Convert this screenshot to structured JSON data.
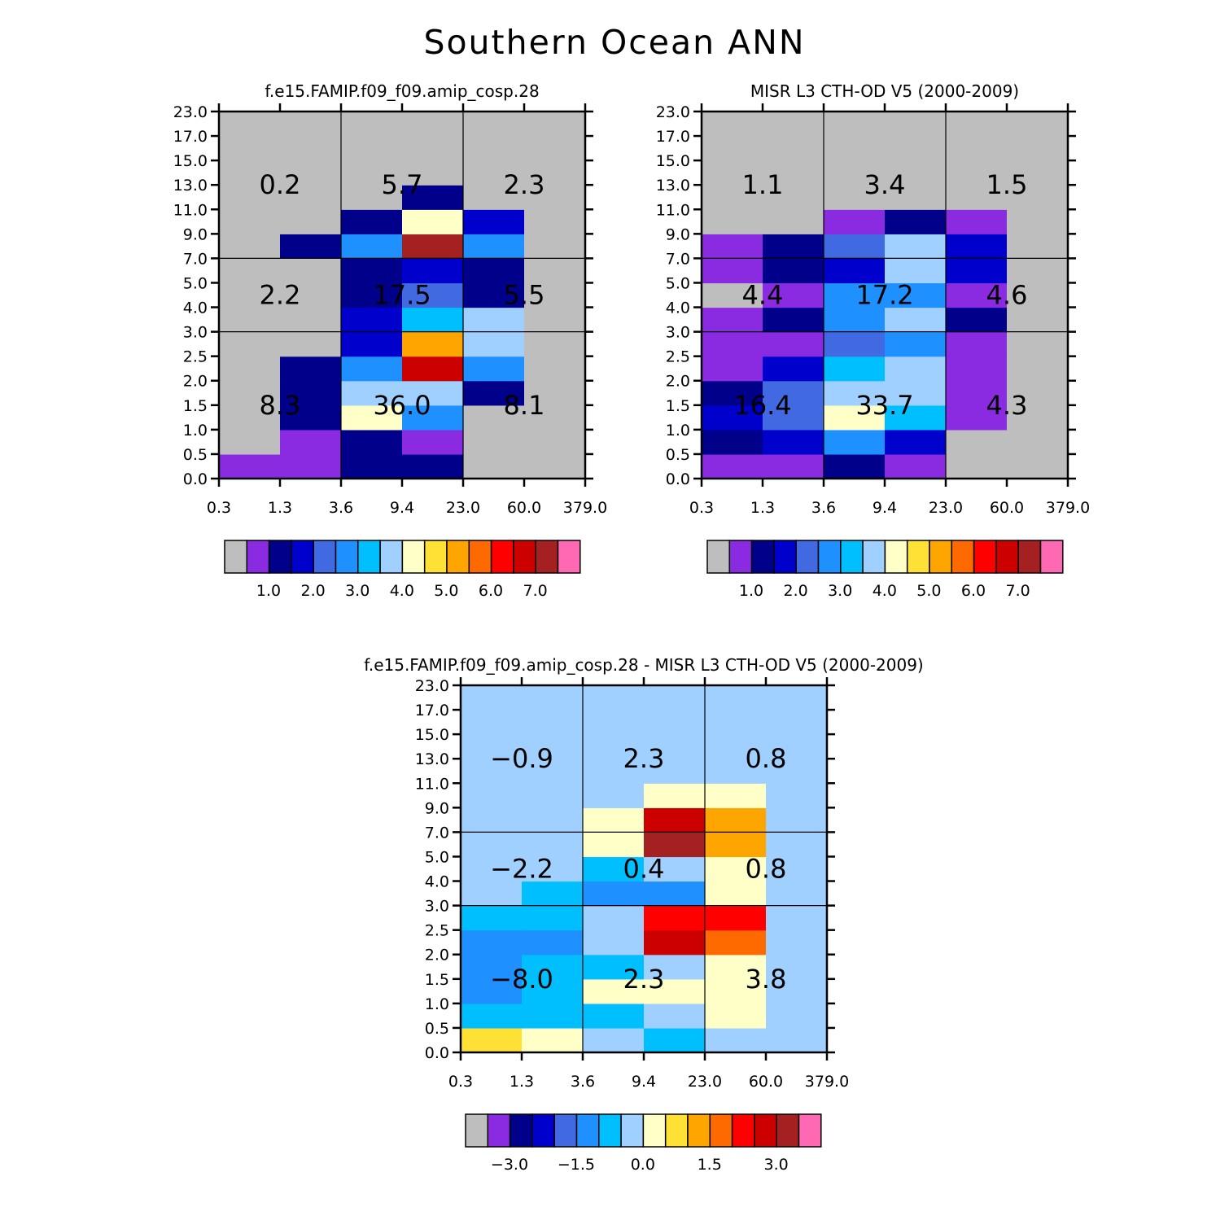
{
  "title": "Southern Ocean ANN",
  "chart_data": [
    {
      "type": "heatmap",
      "title": "f.e15.FAMIP.f09_f09.amip_cosp.28",
      "x_tick_labels": [
        "0.3",
        "1.3",
        "3.6",
        "9.4",
        "23.0",
        "60.0",
        "379.0"
      ],
      "y_tick_labels": [
        "0.0",
        "0.5",
        "1.0",
        "1.5",
        "2.0",
        "2.5",
        "3.0",
        "4.0",
        "5.0",
        "7.0",
        "9.0",
        "11.0",
        "13.0",
        "15.0",
        "17.0",
        "23.0"
      ],
      "cells": [
        [
          1,
          1,
          2,
          2,
          0,
          0
        ],
        [
          0,
          1,
          2,
          1,
          0,
          0
        ],
        [
          0,
          2,
          8,
          5,
          0,
          0
        ],
        [
          0,
          2,
          7,
          7,
          2,
          0
        ],
        [
          0,
          2,
          5,
          13,
          5,
          0
        ],
        [
          0,
          0,
          3,
          10,
          7,
          0
        ],
        [
          0,
          0,
          3,
          6,
          7,
          0
        ],
        [
          0,
          0,
          2,
          4,
          2,
          0
        ],
        [
          0,
          0,
          2,
          3,
          2,
          0
        ],
        [
          0,
          2,
          5,
          14,
          5,
          0
        ],
        [
          0,
          0,
          2,
          8,
          3,
          0
        ],
        [
          0,
          0,
          0,
          2,
          0,
          0
        ],
        [
          0,
          0,
          0,
          0,
          0,
          0
        ],
        [
          0,
          0,
          0,
          0,
          0,
          0
        ],
        [
          0,
          0,
          0,
          0,
          0,
          0
        ]
      ],
      "box_totals": [
        {
          "label": "8.3",
          "group": "low",
          "col_group": 0
        },
        {
          "label": "36.0",
          "group": "low",
          "col_group": 1
        },
        {
          "label": "8.1",
          "group": "low",
          "col_group": 2
        },
        {
          "label": "2.2",
          "group": "mid",
          "col_group": 0
        },
        {
          "label": "17.5",
          "group": "mid",
          "col_group": 1
        },
        {
          "label": "5.5",
          "group": "mid",
          "col_group": 2
        },
        {
          "label": "0.2",
          "group": "high",
          "col_group": 0
        },
        {
          "label": "5.7",
          "group": "high",
          "col_group": 1
        },
        {
          "label": "2.3",
          "group": "high",
          "col_group": 2
        }
      ],
      "colorbar_labels": [
        "1.0",
        "2.0",
        "3.0",
        "4.0",
        "5.0",
        "6.0",
        "7.0"
      ]
    },
    {
      "type": "heatmap",
      "title": "MISR L3 CTH-OD V5 (2000-2009)",
      "x_tick_labels": [
        "0.3",
        "1.3",
        "3.6",
        "9.4",
        "23.0",
        "60.0",
        "379.0"
      ],
      "y_tick_labels": [
        "0.0",
        "0.5",
        "1.0",
        "1.5",
        "2.0",
        "2.5",
        "3.0",
        "4.0",
        "5.0",
        "7.0",
        "9.0",
        "11.0",
        "13.0",
        "15.0",
        "17.0",
        "23.0"
      ],
      "cells": [
        [
          1,
          1,
          2,
          1,
          0,
          0
        ],
        [
          2,
          3,
          5,
          3,
          0,
          0
        ],
        [
          3,
          4,
          8,
          6,
          1,
          0
        ],
        [
          2,
          4,
          7,
          7,
          1,
          0
        ],
        [
          1,
          3,
          6,
          7,
          1,
          0
        ],
        [
          1,
          1,
          4,
          5,
          1,
          0
        ],
        [
          1,
          2,
          5,
          7,
          2,
          0
        ],
        [
          0,
          1,
          5,
          5,
          1,
          0
        ],
        [
          1,
          2,
          3,
          7,
          3,
          0
        ],
        [
          1,
          2,
          4,
          7,
          3,
          0
        ],
        [
          0,
          0,
          1,
          2,
          1,
          0
        ],
        [
          0,
          0,
          0,
          0,
          0,
          0
        ],
        [
          0,
          0,
          0,
          0,
          0,
          0
        ],
        [
          0,
          0,
          0,
          0,
          0,
          0
        ],
        [
          0,
          0,
          0,
          0,
          0,
          0
        ]
      ],
      "box_totals": [
        {
          "label": "16.4",
          "group": "low",
          "col_group": 0
        },
        {
          "label": "33.7",
          "group": "low",
          "col_group": 1
        },
        {
          "label": "4.3",
          "group": "low",
          "col_group": 2
        },
        {
          "label": "4.4",
          "group": "mid",
          "col_group": 0
        },
        {
          "label": "17.2",
          "group": "mid",
          "col_group": 1
        },
        {
          "label": "4.6",
          "group": "mid",
          "col_group": 2
        },
        {
          "label": "1.1",
          "group": "high",
          "col_group": 0
        },
        {
          "label": "3.4",
          "group": "high",
          "col_group": 1
        },
        {
          "label": "1.5",
          "group": "high",
          "col_group": 2
        }
      ],
      "colorbar_labels": [
        "1.0",
        "2.0",
        "3.0",
        "4.0",
        "5.0",
        "6.0",
        "7.0"
      ]
    },
    {
      "type": "heatmap",
      "title": "f.e15.FAMIP.f09_f09.amip_cosp.28 - MISR L3 CTH-OD V5 (2000-2009)",
      "x_tick_labels": [
        "0.3",
        "1.3",
        "3.6",
        "9.4",
        "23.0",
        "60.0",
        "379.0"
      ],
      "y_tick_labels": [
        "0.0",
        "0.5",
        "1.0",
        "1.5",
        "2.0",
        "2.5",
        "3.0",
        "4.0",
        "5.0",
        "7.0",
        "9.0",
        "11.0",
        "13.0",
        "15.0",
        "17.0",
        "23.0"
      ],
      "cells": [
        [
          9,
          8,
          7,
          6,
          7,
          7
        ],
        [
          6,
          6,
          6,
          7,
          8,
          7
        ],
        [
          5,
          6,
          8,
          8,
          8,
          7
        ],
        [
          5,
          6,
          6,
          7,
          8,
          7
        ],
        [
          5,
          5,
          7,
          13,
          11,
          7
        ],
        [
          6,
          6,
          7,
          12,
          12,
          7
        ],
        [
          7,
          6,
          5,
          5,
          8,
          7
        ],
        [
          7,
          7,
          6,
          7,
          8,
          7
        ],
        [
          7,
          7,
          8,
          14,
          10,
          7
        ],
        [
          7,
          7,
          8,
          13,
          10,
          7
        ],
        [
          7,
          7,
          7,
          8,
          8,
          7
        ],
        [
          7,
          7,
          7,
          7,
          7,
          7
        ],
        [
          7,
          7,
          7,
          7,
          7,
          7
        ],
        [
          7,
          7,
          7,
          7,
          7,
          7
        ],
        [
          7,
          7,
          7,
          7,
          7,
          7
        ]
      ],
      "box_totals": [
        {
          "label": "−8.0",
          "group": "low",
          "col_group": 0
        },
        {
          "label": "2.3",
          "group": "low",
          "col_group": 1
        },
        {
          "label": "3.8",
          "group": "low",
          "col_group": 2
        },
        {
          "label": "−2.2",
          "group": "mid",
          "col_group": 0
        },
        {
          "label": "0.4",
          "group": "mid",
          "col_group": 1
        },
        {
          "label": "0.8",
          "group": "mid",
          "col_group": 2
        },
        {
          "label": "−0.9",
          "group": "high",
          "col_group": 0
        },
        {
          "label": "2.3",
          "group": "high",
          "col_group": 1
        },
        {
          "label": "0.8",
          "group": "high",
          "col_group": 2
        }
      ],
      "colorbar_labels": [
        "−3.0",
        "−1.5",
        "0.0",
        "1.5",
        "3.0"
      ]
    }
  ],
  "palette": [
    "#bebebe",
    "#8a2be2",
    "#00008b",
    "#0000cd",
    "#4169e1",
    "#1e90ff",
    "#00bfff",
    "#a0d0ff",
    "#ffffc8",
    "#ffe135",
    "#ffa500",
    "#ff6a00",
    "#ff0000",
    "#cd0000",
    "#a52020",
    "#ff69b4"
  ]
}
